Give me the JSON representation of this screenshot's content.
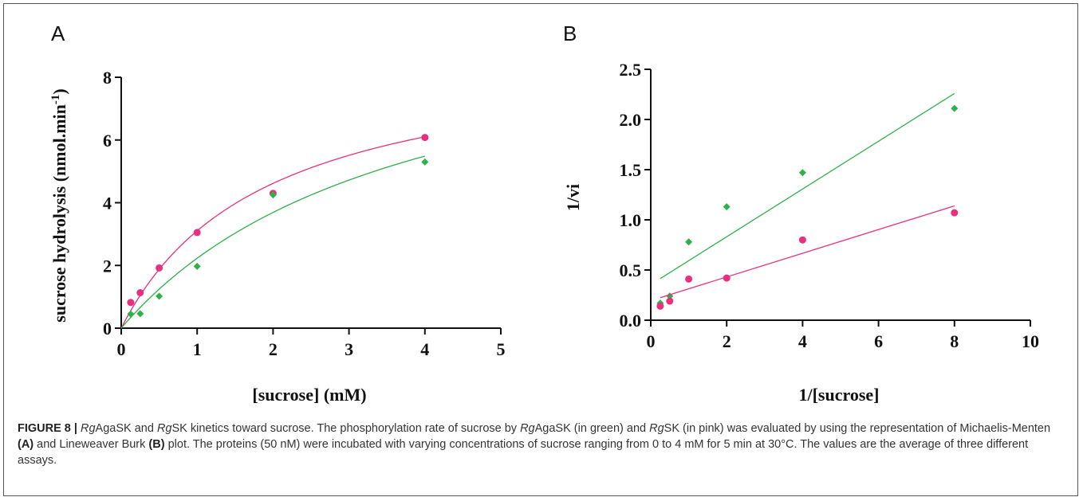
{
  "caption": {
    "figure_label": "FIGURE 8 |",
    "parts": [
      {
        "t": "Rg",
        "s": "i"
      },
      {
        "t": "AgaSK and ",
        "s": ""
      },
      {
        "t": "Rg",
        "s": "i"
      },
      {
        "t": "SK kinetics toward sucrose. The phosphorylation rate of sucrose by ",
        "s": ""
      },
      {
        "t": "Rg",
        "s": "i"
      },
      {
        "t": "AgaSK (in green) and ",
        "s": ""
      },
      {
        "t": "Rg",
        "s": "i"
      },
      {
        "t": "SK (in pink) was evaluated by using the representation of Michaelis-Menten ",
        "s": ""
      },
      {
        "t": "(A)",
        "s": "b"
      },
      {
        "t": " and Lineweaver Burk ",
        "s": ""
      },
      {
        "t": "(B)",
        "s": "b"
      },
      {
        "t": " plot. The proteins (50 nM) were incubated with varying concentrations of sucrose ranging from 0 to 4 mM for 5 min at 30°C. The values are the average of three different assays.",
        "s": ""
      }
    ]
  },
  "colors": {
    "pink": "#e8307f",
    "green": "#2eb04a"
  },
  "chart_data": [
    {
      "panel_label": "A",
      "type": "scatter",
      "xlabel": "[sucrose] (mM)",
      "ylabel_main": "sucrose hydrolysis (nmol.min",
      "ylabel_sup": "-1",
      "ylabel_end": ")",
      "xlim": [
        0,
        5
      ],
      "ylim": [
        0,
        8
      ],
      "xticks": [
        "0",
        "1",
        "2",
        "3",
        "4",
        "5"
      ],
      "yticks": [
        "0",
        "2",
        "4",
        "6",
        "8"
      ],
      "series": [
        {
          "color": "pink",
          "marker": "circle",
          "x": [
            0.125,
            0.25,
            0.5,
            1,
            2,
            4
          ],
          "y": [
            0.82,
            1.13,
            1.92,
            3.05,
            4.3,
            6.08
          ],
          "fit": {
            "model": "michaelis-menten",
            "vmax": 9.0,
            "km": 1.9
          }
        },
        {
          "color": "green",
          "marker": "diamond",
          "x": [
            0.125,
            0.25,
            0.5,
            1,
            2,
            4
          ],
          "y": [
            0.45,
            0.46,
            1.02,
            1.97,
            4.25,
            5.3
          ],
          "fit": {
            "model": "michaelis-menten",
            "vmax": 10.7,
            "km": 3.8
          }
        }
      ]
    },
    {
      "panel_label": "B",
      "type": "scatter",
      "xlabel": "1/[sucrose]",
      "ylabel": "1/vi",
      "xlim": [
        0,
        10
      ],
      "ylim": [
        0,
        2.5
      ],
      "xticks": [
        "0",
        "2",
        "4",
        "6",
        "8",
        "10"
      ],
      "yticks": [
        "0.0",
        "0.5",
        "1.0",
        "1.5",
        "2.0",
        "2.5"
      ],
      "series": [
        {
          "color": "green",
          "marker": "diamond",
          "x": [
            0.25,
            0.5,
            1,
            2,
            4,
            8
          ],
          "y": [
            0.17,
            0.24,
            0.78,
            1.13,
            1.47,
            2.11
          ],
          "fit": {
            "model": "linear",
            "slope": 0.238,
            "intercept": 0.355,
            "xrange": [
              0.25,
              8
            ]
          }
        },
        {
          "color": "pink",
          "marker": "circle",
          "x": [
            0.25,
            0.5,
            1,
            2,
            4,
            8
          ],
          "y": [
            0.14,
            0.19,
            0.41,
            0.42,
            0.8,
            1.07
          ],
          "fit": {
            "model": "linear",
            "slope": 0.118,
            "intercept": 0.195,
            "xrange": [
              0.25,
              8
            ]
          }
        }
      ]
    }
  ]
}
